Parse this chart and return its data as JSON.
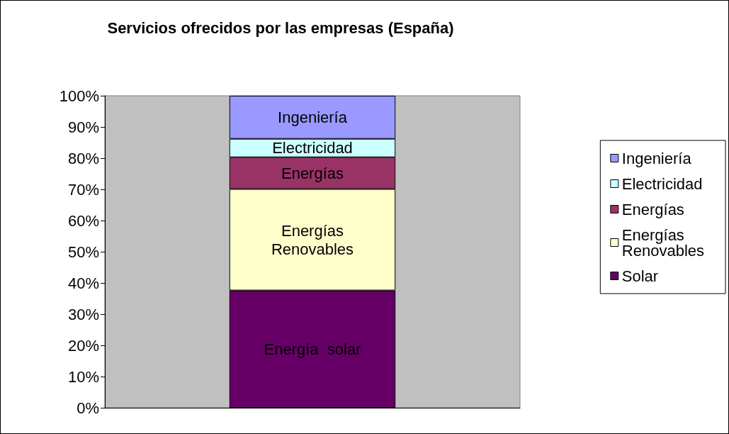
{
  "chart_data": {
    "type": "bar",
    "title": "Servicios ofrecidos por las empresas (España)",
    "categories": [
      null
    ],
    "stacked": true,
    "legend": "right",
    "series": [
      {
        "name": "Solar",
        "color": "#660066",
        "values": [
          37.6
        ]
      },
      {
        "name": "Energías Renovables",
        "color": "#ffffcc",
        "values": [
          32.5
        ]
      },
      {
        "name": "Energías",
        "color": "#993366",
        "values": [
          10.2
        ]
      },
      {
        "name": "Electricidad",
        "color": "#ccffff",
        "values": [
          5.9
        ]
      },
      {
        "name": "Ingeniería",
        "color": "#9999ff",
        "values": [
          13.8
        ]
      }
    ],
    "ylim": [
      0,
      100
    ],
    "yticks": [
      {
        "value": 0,
        "label": "0%"
      },
      {
        "value": 10,
        "label": "10%"
      },
      {
        "value": 20,
        "label": "20%"
      },
      {
        "value": 30,
        "label": "30%"
      },
      {
        "value": 40,
        "label": "40%"
      },
      {
        "value": 50,
        "label": "50%"
      },
      {
        "value": 60,
        "label": "60%"
      },
      {
        "value": 70,
        "label": "70%"
      },
      {
        "value": 80,
        "label": "80%"
      },
      {
        "value": 90,
        "label": "90%"
      },
      {
        "value": 100,
        "label": "100%"
      }
    ],
    "annotations": [
      "Energía  solar",
      "Energías\nRenovables",
      "Energías",
      "Electricidad",
      "Ingeniería"
    ]
  }
}
